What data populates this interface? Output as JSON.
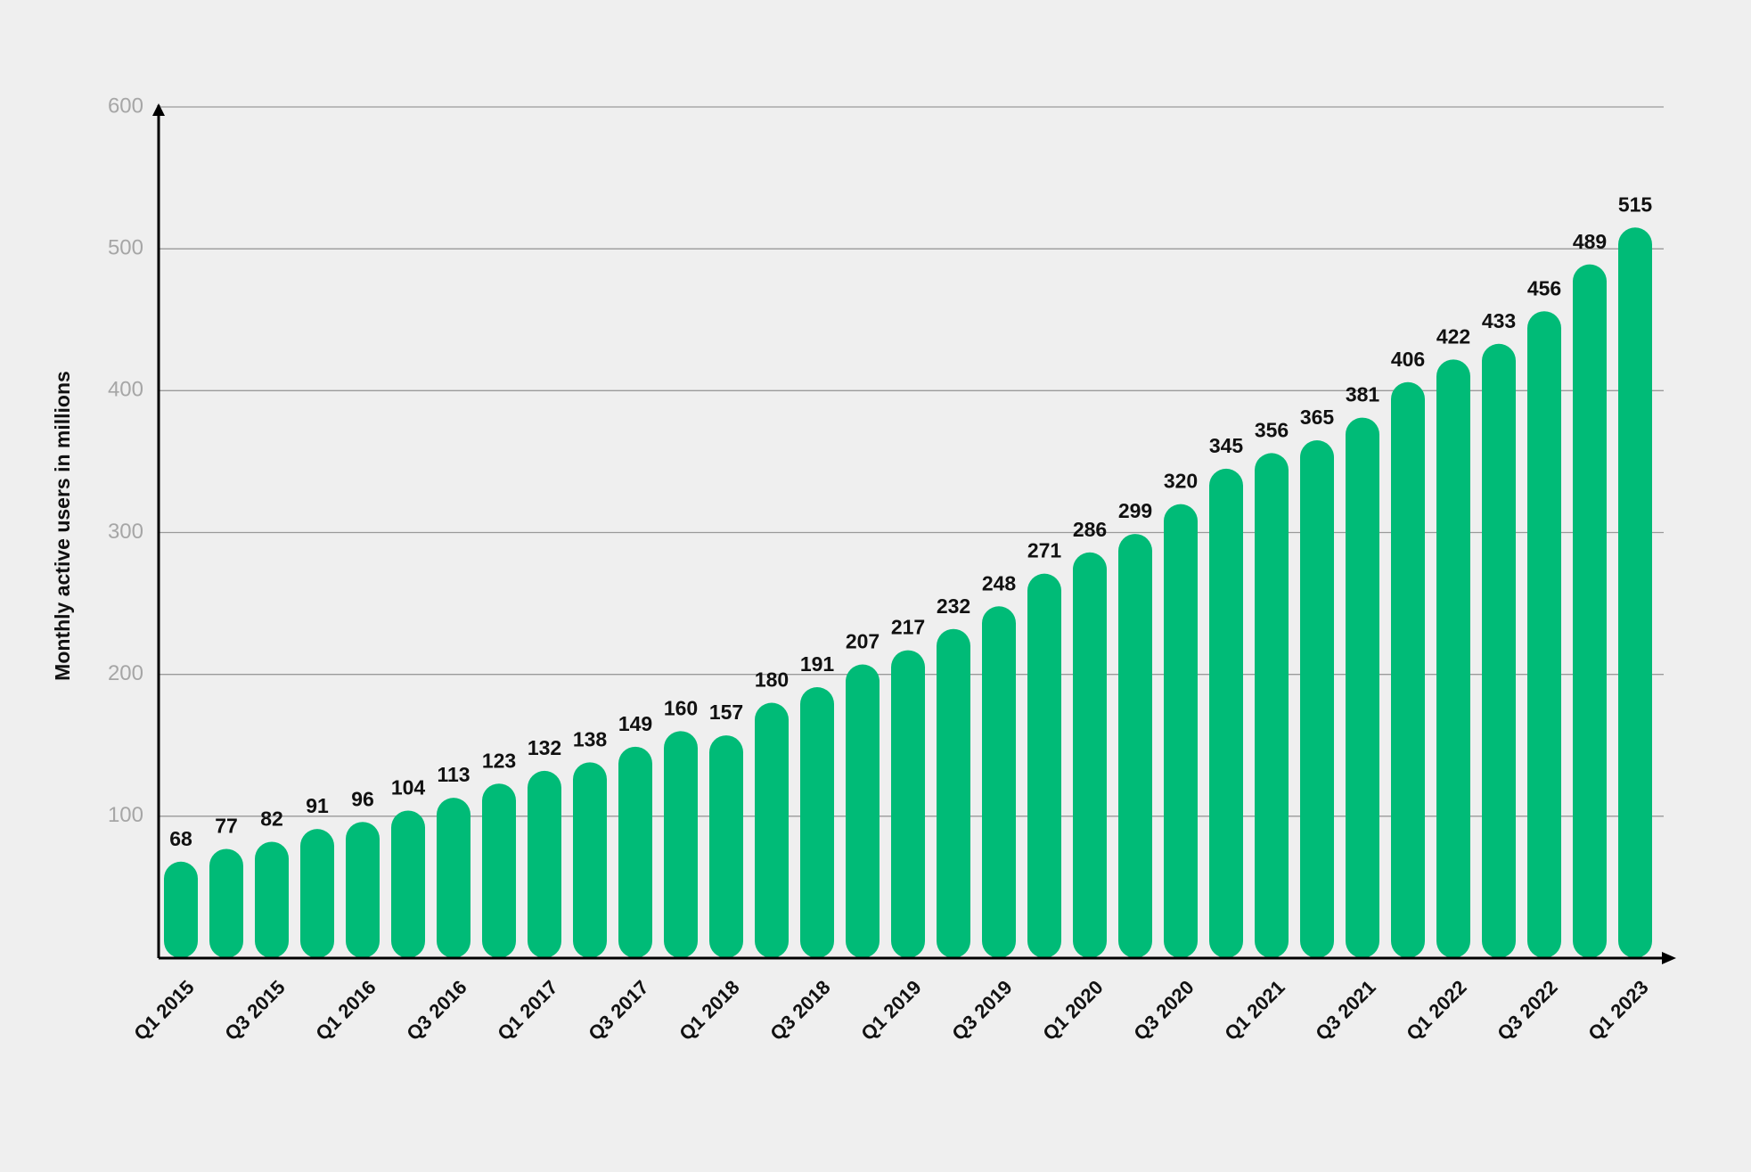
{
  "chart_data": {
    "type": "bar",
    "y_label": "Monthly active users in millions",
    "categories": [
      "Q1 2015",
      null,
      "Q3 2015",
      null,
      "Q1 2016",
      null,
      "Q3 2016",
      null,
      "Q1 2017",
      null,
      "Q3 2017",
      null,
      "Q1 2018",
      null,
      "Q3 2018",
      null,
      "Q1 2019",
      null,
      "Q3 2019",
      null,
      "Q1 2020",
      null,
      "Q3 2020",
      null,
      "Q1 2021",
      null,
      "Q3 2021",
      null,
      "Q1 2022",
      null,
      "Q3 2022",
      null,
      "Q1 2023"
    ],
    "values": [
      68,
      77,
      82,
      91,
      96,
      104,
      113,
      123,
      132,
      138,
      149,
      160,
      157,
      180,
      191,
      207,
      217,
      232,
      248,
      271,
      286,
      299,
      320,
      345,
      356,
      365,
      381,
      406,
      422,
      433,
      456,
      489,
      515
    ],
    "color": "#00bb77",
    "ylim": [
      0,
      600
    ],
    "yticks": [
      100,
      200,
      300,
      400,
      500,
      600
    ],
    "grid": true
  }
}
